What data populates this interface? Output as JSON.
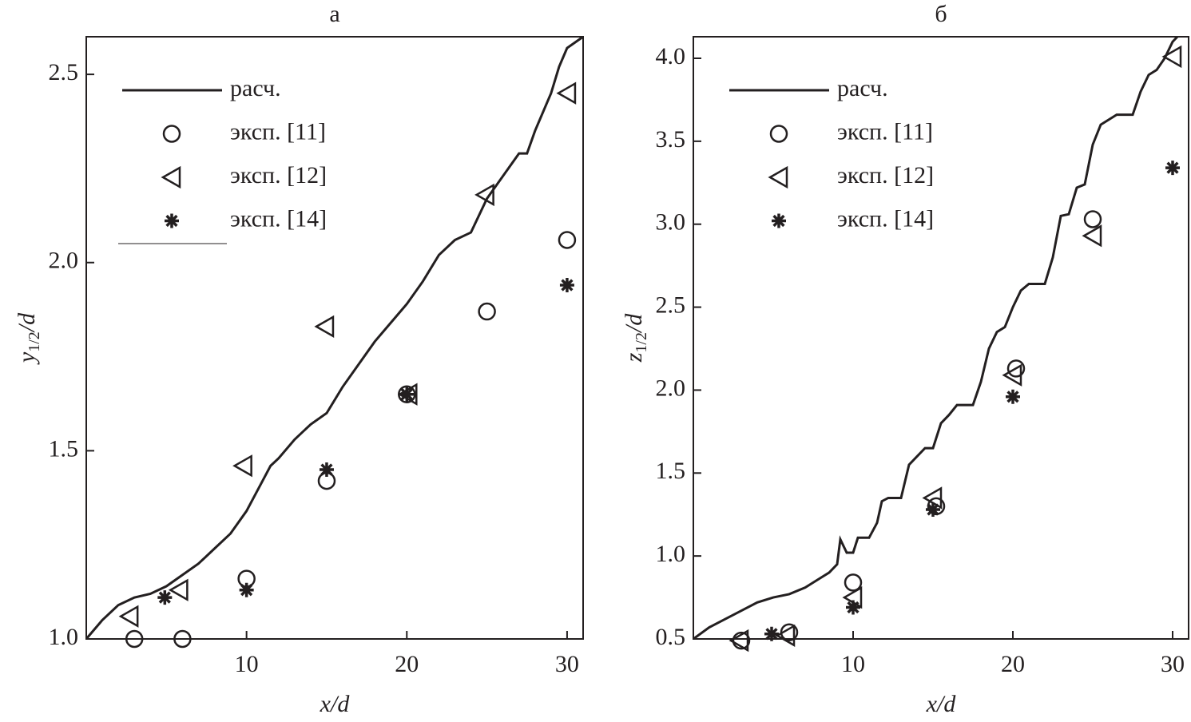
{
  "chart_data": [
    {
      "type": "line",
      "title": "а",
      "xlabel": "x/d",
      "ylabel_parts": [
        "y",
        "1/2",
        "/d"
      ],
      "xlim": [
        0,
        31
      ],
      "ylim": [
        1.0,
        2.6
      ],
      "xticks": [
        10,
        20,
        30
      ],
      "yticks": [
        {
          "value": 1,
          "label": "1.0"
        },
        1.5,
        {
          "value": 2,
          "label": "2.0"
        },
        2.5
      ],
      "legend": "upper left",
      "series": [
        {
          "name": "расч.",
          "color": "#231f20",
          "marker": "line",
          "x": [
            0,
            1,
            2,
            3,
            4,
            5,
            6,
            7,
            8,
            9,
            10,
            11,
            11.5,
            12,
            13,
            14,
            15,
            16,
            17,
            18,
            19,
            20,
            21,
            22,
            23,
            24,
            25,
            26,
            27,
            27.5,
            28,
            29,
            29.5,
            30,
            31
          ],
          "y": [
            1.0,
            1.05,
            1.09,
            1.11,
            1.12,
            1.14,
            1.17,
            1.2,
            1.24,
            1.28,
            1.34,
            1.42,
            1.46,
            1.48,
            1.53,
            1.57,
            1.6,
            1.67,
            1.73,
            1.79,
            1.84,
            1.89,
            1.95,
            2.02,
            2.06,
            2.08,
            2.17,
            2.23,
            2.29,
            2.29,
            2.35,
            2.45,
            2.52,
            2.57,
            2.6
          ]
        },
        {
          "name": "эксп. [11]",
          "color": "#231f20",
          "marker": "circle",
          "x": [
            3,
            6,
            10,
            15,
            20,
            25,
            30
          ],
          "y": [
            1.0,
            1.0,
            1.16,
            1.42,
            1.65,
            1.87,
            2.06
          ]
        },
        {
          "name": "эксп. [12]",
          "color": "#231f20",
          "marker": "triangle-left",
          "x": [
            2.7,
            5.8,
            9.8,
            14.9,
            20.1,
            24.9,
            30
          ],
          "y": [
            1.06,
            1.13,
            1.46,
            1.83,
            1.65,
            2.18,
            2.45
          ]
        },
        {
          "name": "эксп. [14]",
          "color": "#231f20",
          "marker": "star",
          "x": [
            4.9,
            10,
            15,
            20,
            30
          ],
          "y": [
            1.11,
            1.13,
            1.45,
            1.65,
            1.94
          ]
        }
      ]
    },
    {
      "type": "line",
      "title": "б",
      "xlabel": "x/d",
      "ylabel_parts": [
        "z",
        "1/2",
        "/d"
      ],
      "xlim": [
        0,
        31
      ],
      "ylim": [
        0.5,
        4.13
      ],
      "xticks": [
        10,
        20,
        30
      ],
      "yticks": [
        0.5,
        {
          "value": 1,
          "label": "1.0"
        },
        1.5,
        {
          "value": 2,
          "label": "2.0"
        },
        2.5,
        {
          "value": 3,
          "label": "3.0"
        },
        3.5,
        {
          "value": 4,
          "label": "4.0"
        }
      ],
      "legend": "upper left",
      "series": [
        {
          "name": "расч.",
          "color": "#231f20",
          "marker": "line",
          "x": [
            0,
            1,
            2,
            3,
            4,
            5,
            6,
            7,
            8,
            8.5,
            9,
            9.2,
            9.6,
            10,
            10.3,
            11,
            11.5,
            11.8,
            12.2,
            13,
            13.5,
            14.5,
            15,
            15.5,
            16,
            16.5,
            17.5,
            18,
            18.5,
            19,
            19.5,
            20,
            20.5,
            21,
            22,
            22.5,
            23,
            23.5,
            24,
            24.5,
            25,
            25.5,
            26.5,
            27.5,
            28,
            28.5,
            29,
            29.5,
            30,
            30.3
          ],
          "y": [
            0.5,
            0.57,
            0.62,
            0.67,
            0.72,
            0.75,
            0.77,
            0.81,
            0.87,
            0.9,
            0.95,
            1.1,
            1.02,
            1.02,
            1.11,
            1.11,
            1.2,
            1.33,
            1.35,
            1.35,
            1.55,
            1.65,
            1.65,
            1.8,
            1.85,
            1.91,
            1.91,
            2.05,
            2.25,
            2.35,
            2.38,
            2.5,
            2.6,
            2.64,
            2.64,
            2.8,
            3.05,
            3.06,
            3.22,
            3.24,
            3.48,
            3.6,
            3.66,
            3.66,
            3.8,
            3.9,
            3.93,
            4.0,
            4.1,
            4.13
          ]
        },
        {
          "name": "эксп. [11]",
          "color": "#231f20",
          "marker": "circle",
          "x": [
            3,
            6,
            10,
            15.2,
            20.2,
            25
          ],
          "y": [
            0.49,
            0.54,
            0.84,
            1.3,
            2.13,
            3.03
          ]
        },
        {
          "name": "эксп. [12]",
          "color": "#231f20",
          "marker": "triangle-left",
          "x": [
            2.9,
            5.8,
            10,
            15,
            20,
            25,
            30
          ],
          "y": [
            0.49,
            0.52,
            0.75,
            1.35,
            2.09,
            2.93,
            4.01
          ]
        },
        {
          "name": "эксп. [14]",
          "color": "#231f20",
          "marker": "star",
          "x": [
            4.9,
            10,
            15,
            20,
            30
          ],
          "y": [
            0.53,
            0.69,
            1.28,
            1.96,
            3.34
          ]
        }
      ]
    }
  ]
}
